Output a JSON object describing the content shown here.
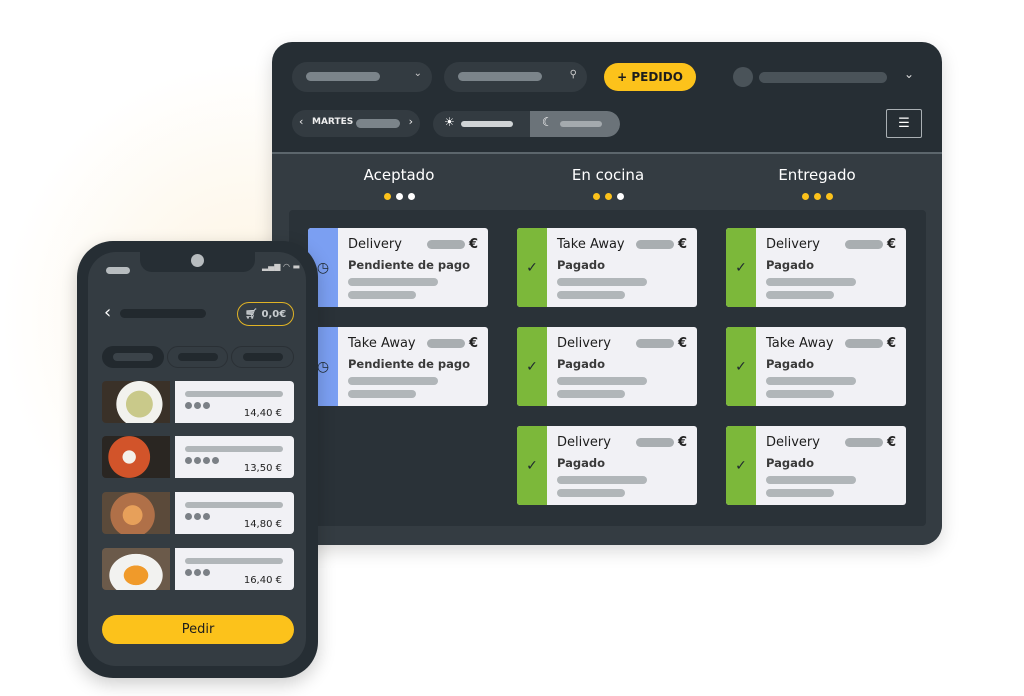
{
  "tablet": {
    "new_order_label": "+ PEDIDO",
    "day_label": "MARTES",
    "columns": [
      {
        "title": "Aceptado",
        "dots": [
          "#fcc21b",
          "#ffffff",
          "#ffffff"
        ]
      },
      {
        "title": "En cocina",
        "dots": [
          "#fcc21b",
          "#fcc21b",
          "#ffffff"
        ]
      },
      {
        "title": "Entregado",
        "dots": [
          "#fcc21b",
          "#fcc21b",
          "#fcc21b"
        ]
      }
    ],
    "cards": [
      [
        {
          "type": "Delivery",
          "status": "Pendiente de pago",
          "currency": "€",
          "icon": "clock-icon",
          "color": "#7b9ff2"
        },
        {
          "type": "Take Away",
          "status": "Pendiente de pago",
          "currency": "€",
          "icon": "clock-icon",
          "color": "#7b9ff2"
        }
      ],
      [
        {
          "type": "Take Away",
          "status": "Pagado",
          "currency": "€",
          "icon": "check-icon",
          "color": "#7cb83a"
        },
        {
          "type": "Delivery",
          "status": "Pagado",
          "currency": "€",
          "icon": "check-icon",
          "color": "#7cb83a"
        },
        {
          "type": "Delivery",
          "status": "Pagado",
          "currency": "€",
          "icon": "check-icon",
          "color": "#7cb83a"
        }
      ],
      [
        {
          "type": "Delivery",
          "status": "Pagado",
          "currency": "€",
          "icon": "check-icon",
          "color": "#7cb83a"
        },
        {
          "type": "Take Away",
          "status": "Pagado",
          "currency": "€",
          "icon": "check-icon",
          "color": "#7cb83a"
        },
        {
          "type": "Delivery",
          "status": "Pagado",
          "currency": "€",
          "icon": "check-icon",
          "color": "#7cb83a"
        }
      ]
    ]
  },
  "phone": {
    "cart_total": "0,0€",
    "items": [
      {
        "price": "14,40 €",
        "rating": 3
      },
      {
        "price": "13,50 €",
        "rating": 4
      },
      {
        "price": "14,80 €",
        "rating": 3
      },
      {
        "price": "16,40 €",
        "rating": 3
      }
    ],
    "order_button": "Pedir"
  },
  "colors": {
    "accent": "#fcc21b",
    "pending": "#7b9ff2",
    "paid": "#7cb83a",
    "background": "#262e34"
  }
}
